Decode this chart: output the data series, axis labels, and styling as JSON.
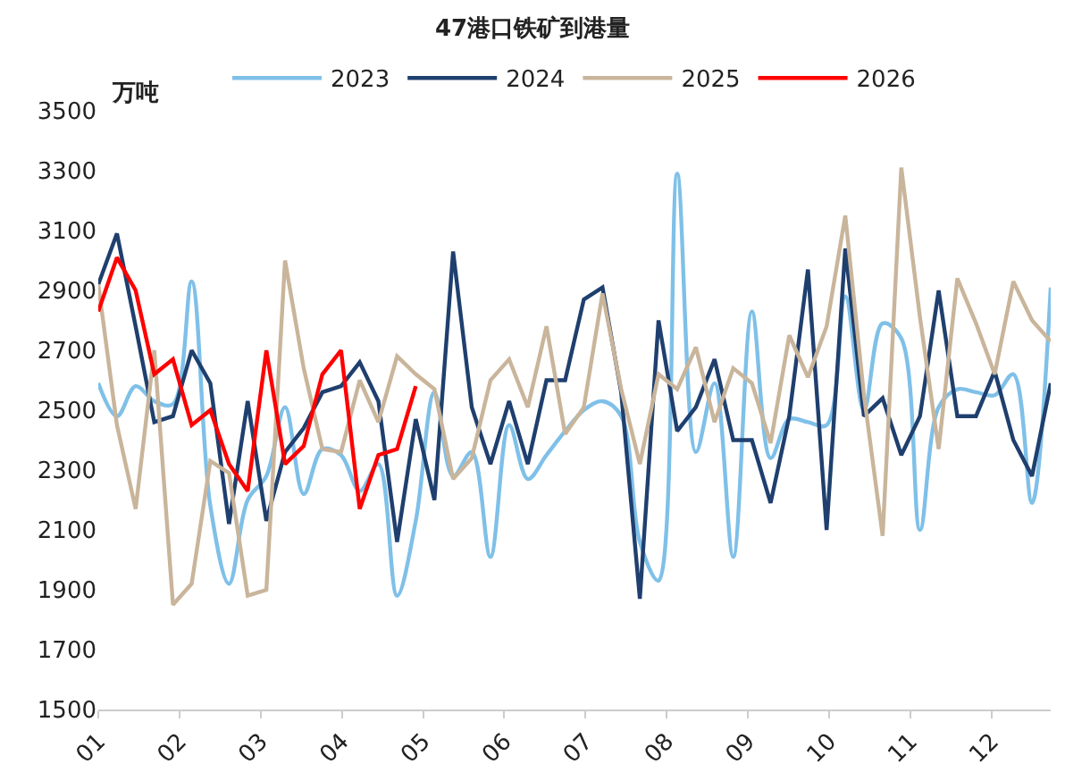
{
  "chart_data": {
    "type": "line",
    "title": "47港口铁矿到港量",
    "ylabel": "万吨",
    "ylim": [
      1500,
      3500
    ],
    "yticks": [
      1500,
      1700,
      1900,
      2100,
      2300,
      2500,
      2700,
      2900,
      3100,
      3300,
      3500
    ],
    "xlim": [
      1,
      12.73
    ],
    "xticks": [
      {
        "value": 1,
        "label": "01"
      },
      {
        "value": 2,
        "label": "02"
      },
      {
        "value": 3,
        "label": "03"
      },
      {
        "value": 4,
        "label": "04"
      },
      {
        "value": 5,
        "label": "05"
      },
      {
        "value": 6,
        "label": "06"
      },
      {
        "value": 7,
        "label": "07"
      },
      {
        "value": 8,
        "label": "08"
      },
      {
        "value": 9,
        "label": "09"
      },
      {
        "value": 10,
        "label": "10"
      },
      {
        "value": 11,
        "label": "11"
      },
      {
        "value": 12,
        "label": "12"
      }
    ],
    "legend": "top",
    "marker": "none",
    "series": [
      {
        "name": "2023",
        "color": "#7fc0e8",
        "x": [
          1,
          1.23,
          1.46,
          1.69,
          1.92,
          2.15,
          2.38,
          2.61,
          2.84,
          3.07,
          3.3,
          3.53,
          3.76,
          3.99,
          4.22,
          4.45,
          4.68,
          4.91,
          5.14,
          5.37,
          5.6,
          5.83,
          6.06,
          6.29,
          6.52,
          6.75,
          6.98,
          7.21,
          7.44,
          7.67,
          7.9,
          8.13,
          8.36,
          8.59,
          8.82,
          9.05,
          9.28,
          9.51,
          9.74,
          9.97,
          10.2,
          10.43,
          10.66,
          10.89,
          11.12,
          11.35,
          11.58,
          11.81,
          12.04,
          12.27,
          12.5,
          12.73
        ],
        "values": [
          2590,
          2480,
          2580,
          2530,
          2520,
          2930,
          2180,
          1920,
          2200,
          2280,
          2510,
          2220,
          2370,
          2350,
          2230,
          2320,
          1880,
          2130,
          2560,
          2280,
          2360,
          2010,
          2450,
          2270,
          2350,
          2430,
          2500,
          2530,
          2480,
          2060,
          1930,
          3290,
          2360,
          2590,
          2010,
          2830,
          2340,
          2470,
          2460,
          2450,
          2880,
          2500,
          2790,
          2740,
          2100,
          2510,
          2570,
          2560,
          2550,
          2620,
          2190,
          2910
        ]
      },
      {
        "name": "2024",
        "color": "#1f3f6e",
        "x": [
          1,
          1.23,
          1.46,
          1.69,
          1.92,
          2.15,
          2.38,
          2.61,
          2.84,
          3.07,
          3.3,
          3.53,
          3.76,
          3.99,
          4.22,
          4.45,
          4.68,
          4.91,
          5.14,
          5.37,
          5.6,
          5.83,
          6.06,
          6.29,
          6.52,
          6.75,
          6.98,
          7.21,
          7.44,
          7.67,
          7.9,
          8.13,
          8.36,
          8.59,
          8.82,
          9.05,
          9.28,
          9.51,
          9.74,
          9.97,
          10.2,
          10.43,
          10.66,
          10.89,
          11.12,
          11.35,
          11.58,
          11.81,
          12.04,
          12.27,
          12.5,
          12.73
        ],
        "values": [
          2920,
          3090,
          2780,
          2460,
          2480,
          2700,
          2590,
          2120,
          2530,
          2130,
          2360,
          2440,
          2560,
          2580,
          2660,
          2530,
          2060,
          2470,
          2200,
          3030,
          2510,
          2320,
          2530,
          2320,
          2600,
          2600,
          2870,
          2910,
          2560,
          1870,
          2800,
          2430,
          2510,
          2670,
          2400,
          2400,
          2190,
          2480,
          2970,
          2100,
          3040,
          2480,
          2540,
          2350,
          2480,
          2900,
          2480,
          2480,
          2630,
          2400,
          2280,
          2590
        ]
      },
      {
        "name": "2025",
        "color": "#c9b59b",
        "x": [
          1,
          1.23,
          1.46,
          1.69,
          1.92,
          2.15,
          2.38,
          2.61,
          2.84,
          3.07,
          3.3,
          3.53,
          3.76,
          3.99,
          4.22,
          4.45,
          4.68,
          4.91,
          5.14,
          5.37,
          5.6,
          5.83,
          6.06,
          6.29,
          6.52,
          6.75,
          6.98,
          7.21,
          7.44,
          7.67,
          7.9,
          8.13,
          8.36,
          8.59,
          8.82,
          9.05,
          9.28,
          9.51,
          9.74,
          9.97,
          10.2,
          10.43,
          10.66,
          10.89,
          11.12,
          11.35,
          11.58,
          11.81,
          12.04,
          12.27,
          12.5,
          12.73
        ],
        "values": [
          2920,
          2450,
          2170,
          2700,
          1850,
          1920,
          2330,
          2290,
          1880,
          1900,
          3000,
          2640,
          2370,
          2360,
          2600,
          2460,
          2680,
          2620,
          2570,
          2270,
          2340,
          2600,
          2670,
          2510,
          2780,
          2420,
          2510,
          2890,
          2570,
          2320,
          2620,
          2570,
          2710,
          2460,
          2640,
          2590,
          2390,
          2750,
          2610,
          2780,
          3150,
          2550,
          2080,
          3310,
          2810,
          2370,
          2940,
          2790,
          2620,
          2930,
          2800,
          2730
        ]
      },
      {
        "name": "2026",
        "color": "#ff0000",
        "x": [
          1,
          1.23,
          1.46,
          1.69,
          1.92,
          2.15,
          2.38,
          2.61,
          2.84,
          3.07,
          3.3,
          3.53,
          3.76,
          3.99,
          4.22,
          4.45,
          4.68,
          4.91
        ],
        "values": [
          2830,
          3010,
          2900,
          2620,
          2670,
          2450,
          2500,
          2320,
          2230,
          2700,
          2320,
          2380,
          2620,
          2700,
          2170,
          2350,
          2370,
          2580
        ]
      }
    ]
  }
}
